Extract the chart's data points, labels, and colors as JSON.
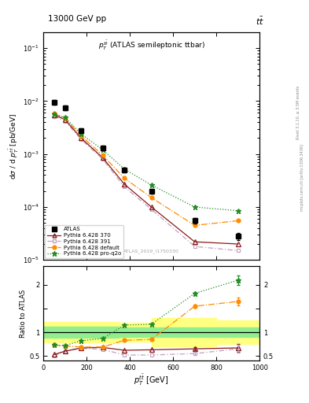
{
  "title_top": "13000 GeV pp",
  "title_right": "tt",
  "plot_title": "$p_T^{t\\bar{t}}$ (ATLAS semileptonic ttbar)",
  "watermark": "ATLAS_2019_I1750330",
  "right_label": "Rivet 3.1.10, ≥ 3.5M events",
  "arxiv_label": "mcplots.cern.ch [arXiv:1306.3436]",
  "xlabel": "$p_T^{\\bar{tt}}$ [GeV]",
  "ylabel": "dσ / d $p_T^{t\\bar{t}}$ [pb/GeV]",
  "ratio_ylabel": "Ratio to ATLAS",
  "xlim": [
    0,
    1000
  ],
  "ylim_log": [
    1e-05,
    0.2
  ],
  "ylim_ratio": [
    0.4,
    2.4
  ],
  "atlas_x": [
    50,
    100,
    175,
    275,
    375,
    500,
    700,
    900
  ],
  "atlas_y": [
    0.0095,
    0.0075,
    0.0028,
    0.0013,
    0.0005,
    0.0002,
    5.5e-05,
    2.8e-05
  ],
  "atlas_yerr": [
    0.001,
    0.0007,
    0.00025,
    0.00013,
    5e-05,
    2e-05,
    6e-06,
    4e-06
  ],
  "py370_x": [
    50,
    100,
    175,
    275,
    375,
    500,
    700,
    900
  ],
  "py370_y": [
    0.0055,
    0.0045,
    0.002,
    0.00085,
    0.00027,
    0.0001,
    2.2e-05,
    2e-05
  ],
  "py391_x": [
    50,
    100,
    175,
    275,
    375,
    500,
    700,
    900
  ],
  "py391_y": [
    0.0052,
    0.0042,
    0.0019,
    0.0008,
    0.00024,
    9e-05,
    1.8e-05,
    1.5e-05
  ],
  "pydef_x": [
    50,
    100,
    175,
    275,
    375,
    500,
    700,
    900
  ],
  "pydef_y": [
    0.0058,
    0.0048,
    0.0022,
    0.00095,
    0.00035,
    0.00015,
    4.5e-05,
    5.5e-05
  ],
  "pyq2o_x": [
    50,
    100,
    175,
    275,
    375,
    500,
    700,
    900
  ],
  "pyq2o_y": [
    0.0056,
    0.0049,
    0.0024,
    0.0012,
    0.00052,
    0.00026,
    0.0001,
    8.5e-05
  ],
  "ratio_py370": [
    0.53,
    0.6,
    0.67,
    0.68,
    0.62,
    0.63,
    0.65,
    0.67
  ],
  "ratio_py391": [
    0.5,
    0.6,
    0.66,
    0.64,
    0.52,
    0.52,
    0.55,
    0.65
  ],
  "ratio_pydef": [
    0.73,
    0.71,
    0.69,
    0.69,
    0.83,
    0.85,
    1.55,
    1.65
  ],
  "ratio_pyq2o": [
    0.73,
    0.72,
    0.82,
    0.87,
    1.15,
    1.17,
    1.82,
    2.1
  ],
  "ratio_py370_xerr": [
    50,
    50,
    50,
    50,
    50,
    50,
    100,
    100
  ],
  "ratio_py391_xerr": [
    50,
    50,
    50,
    50,
    50,
    50,
    100,
    100
  ],
  "ratio_pydef_xerr": [
    50,
    50,
    50,
    50,
    50,
    50,
    100,
    100
  ],
  "ratio_pyq2o_xerr": [
    50,
    50,
    50,
    50,
    50,
    50,
    100,
    100
  ],
  "ratio_py370_yerr": [
    0.02,
    0.02,
    0.02,
    0.02,
    0.02,
    0.02,
    0.03,
    0.08
  ],
  "ratio_py391_yerr": [
    0.02,
    0.02,
    0.02,
    0.02,
    0.02,
    0.02,
    0.03,
    0.08
  ],
  "ratio_pydef_yerr": [
    0.02,
    0.02,
    0.02,
    0.02,
    0.02,
    0.02,
    0.03,
    0.08
  ],
  "ratio_pyq2o_yerr": [
    0.02,
    0.02,
    0.02,
    0.02,
    0.02,
    0.02,
    0.03,
    0.1
  ],
  "band_edges": [
    0,
    100,
    200,
    350,
    500,
    800,
    1000
  ],
  "band_green_low": [
    0.88,
    0.88,
    0.88,
    0.9,
    0.9,
    0.9,
    0.9
  ],
  "band_green_high": [
    1.12,
    1.12,
    1.12,
    1.1,
    1.1,
    1.1,
    1.1
  ],
  "band_yellow_low": [
    0.78,
    0.78,
    0.78,
    0.8,
    0.7,
    0.75,
    0.75
  ],
  "band_yellow_high": [
    1.22,
    1.22,
    1.22,
    1.2,
    1.3,
    1.25,
    1.25
  ],
  "color_py370": "#8B1A1A",
  "color_py391": "#C0A0C0",
  "color_pydef": "#FF8C00",
  "color_pyq2o": "#228B22",
  "color_atlas": "black",
  "color_band_green": "#90EE90",
  "color_band_yellow": "#FFFF80"
}
